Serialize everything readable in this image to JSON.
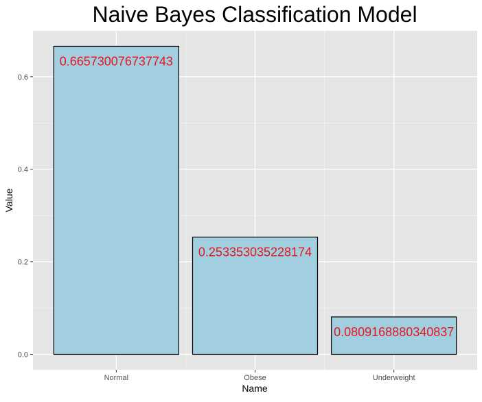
{
  "colors": {
    "panel_background": "#e5e5e5",
    "grid_major": "#ffffff",
    "bar_fill": "#a1cfe0",
    "bar_outline": "#000000",
    "data_label": "#e8141f",
    "axis_text": "#4d4d4d",
    "title_text": "#000000"
  },
  "chart_data": {
    "type": "bar",
    "title": "Naive Bayes Classification Model",
    "xlabel": "Name",
    "ylabel": "Value",
    "categories": [
      "Normal",
      "Obese",
      "Underweight"
    ],
    "values": [
      0.665730076737743,
      0.253353035228174,
      0.0809168880340837
    ],
    "data_labels": [
      "0.665730076737743",
      "0.253353035228174",
      "0.0809168880340837"
    ],
    "ylim": [
      -0.0333,
      0.6991
    ],
    "y_ticks": [
      0.0,
      0.2,
      0.4,
      0.6
    ],
    "y_tick_labels": [
      "0.0",
      "0.2",
      "0.4",
      "0.6"
    ],
    "y_minor_ticks": [
      0.1,
      0.3,
      0.5
    ],
    "grid": true,
    "legend": "none"
  }
}
